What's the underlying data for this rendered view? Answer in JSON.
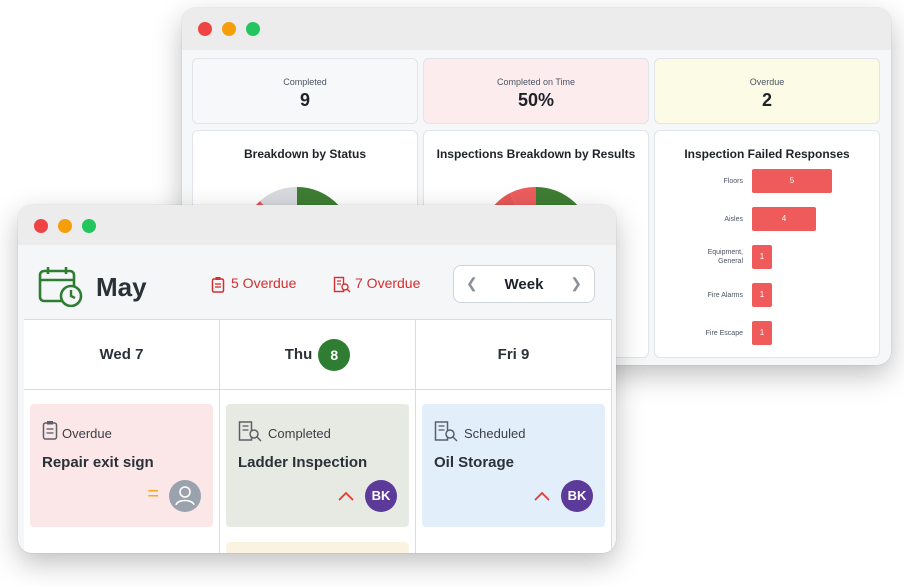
{
  "dashboard": {
    "stats": [
      {
        "label": "Completed",
        "value": "9"
      },
      {
        "label": "Completed on Time",
        "value": "50%"
      },
      {
        "label": "Overdue",
        "value": "2"
      }
    ],
    "panels": {
      "status_title": "Breakdown by Status",
      "results_title": "Inspections Breakdown by Results",
      "failed_title": "Inspection Failed Responses"
    },
    "chart_data": {
      "type": "bar",
      "title": "Inspection Failed Responses",
      "categories": [
        "Floors",
        "Aisles",
        "Equipment, General",
        "Fire Alarms",
        "Fire Escape"
      ],
      "values": [
        5,
        4,
        1,
        1,
        1
      ],
      "orientation": "horizontal"
    },
    "equipment_label_line1": "Equipment,",
    "equipment_label_line2": "General"
  },
  "calendar": {
    "month": "May",
    "overdue_a": "5 Overdue",
    "overdue_b": "7 Overdue",
    "view": "Week",
    "days": [
      {
        "name": "Wed 7"
      },
      {
        "name": "Thu",
        "badge": "8"
      },
      {
        "name": "Fri 9"
      }
    ],
    "cards": [
      {
        "status": "Overdue",
        "title": "Repair exit sign",
        "bg": "#fbe6e8"
      },
      {
        "status": "Completed",
        "title": "Ladder Inspection",
        "avatar": "BK",
        "bg": "#e7eae3"
      },
      {
        "status": "Scheduled",
        "title": "Oil Storage",
        "avatar": "BK",
        "bg": "#e3eefb"
      }
    ]
  },
  "colors": {
    "red": "#ef5b5b",
    "green": "#2e7d32",
    "purple": "#5b3a99",
    "accent_red": "#d32f2f"
  }
}
